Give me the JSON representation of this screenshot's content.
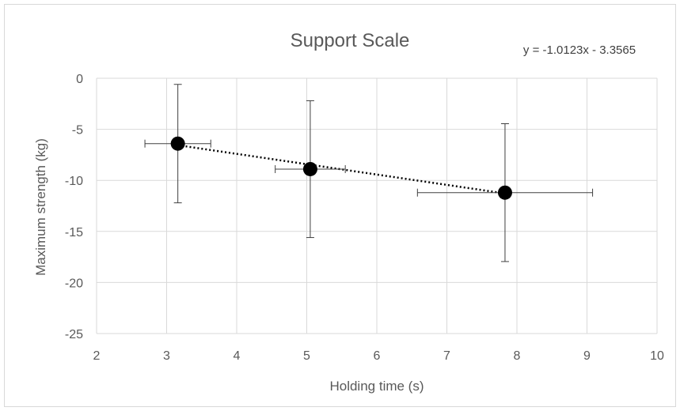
{
  "chart_data": {
    "type": "scatter",
    "title": "Support Scale",
    "xlabel": "Holding time (s)",
    "ylabel": "Maximum strength (kg)",
    "xlim": [
      2,
      10
    ],
    "ylim": [
      -25,
      0
    ],
    "xticks": [
      2,
      3,
      4,
      5,
      6,
      7,
      8,
      9,
      10
    ],
    "yticks": [
      0,
      -5,
      -10,
      -15,
      -20,
      -25
    ],
    "grid": true,
    "trendline": {
      "type": "linear",
      "slope": -1.0123,
      "intercept": -3.3565,
      "equation": "y = -1.0123x - 3.3565",
      "style": "dotted"
    },
    "points": [
      {
        "x": 3.16,
        "y": -6.4,
        "xerr": 0.47,
        "yerr": 5.8
      },
      {
        "x": 5.05,
        "y": -8.9,
        "xerr": 0.5,
        "yerr": 6.7
      },
      {
        "x": 7.83,
        "y": -11.2,
        "xerr": 1.25,
        "yerr": 6.75
      }
    ]
  }
}
